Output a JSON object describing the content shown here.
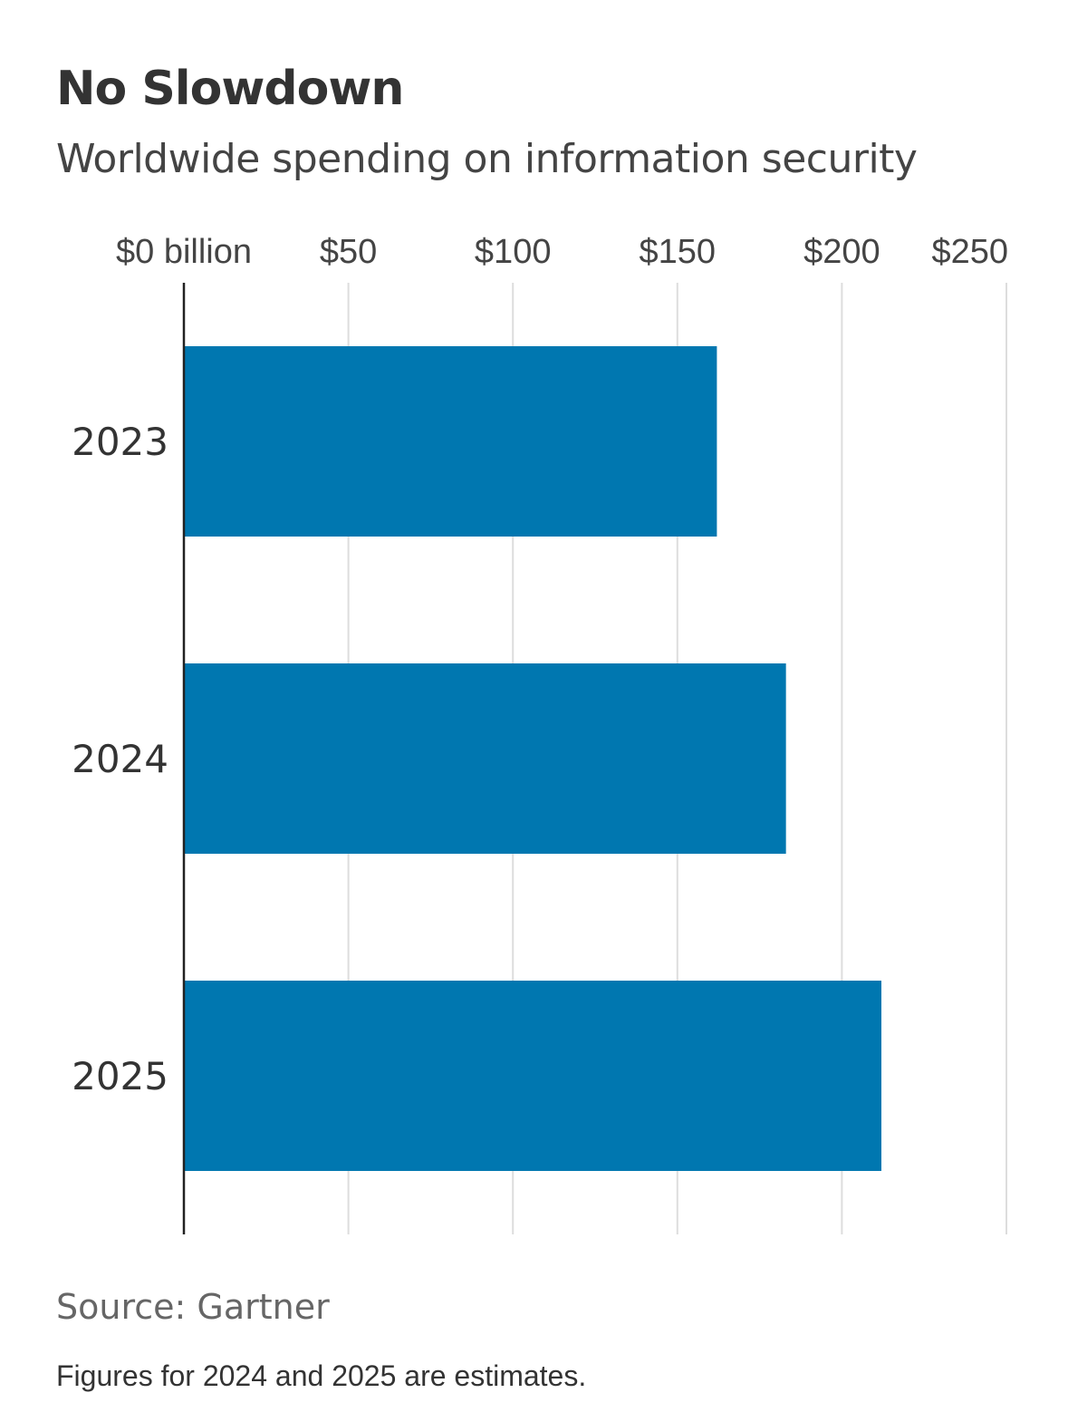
{
  "chart_data": {
    "type": "bar",
    "orientation": "horizontal",
    "title": "No Slowdown",
    "subtitle": "Worldwide spending on information security",
    "categories": [
      "2023",
      "2024",
      "2025"
    ],
    "values": [
      162,
      183,
      212
    ],
    "xlim": [
      0,
      250
    ],
    "x_ticks": [
      0,
      50,
      100,
      150,
      200,
      250
    ],
    "x_tick_labels": [
      "$0 billion",
      "$50",
      "$100",
      "$150",
      "$200",
      "$250"
    ],
    "xlabel": "",
    "ylabel": "",
    "grid": true,
    "bar_color": "#0077b0",
    "source": "Source: Gartner",
    "note": "Figures for 2024 and 2025 are estimates."
  }
}
